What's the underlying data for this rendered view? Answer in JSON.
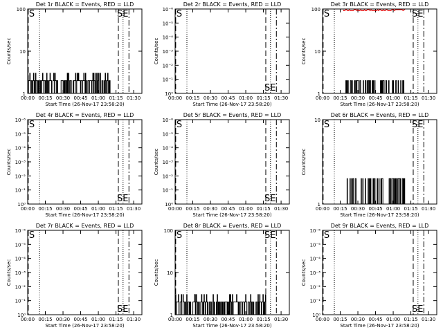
{
  "figure": {
    "xlabel": "Start Time (26-Nov-17 23:58:20)",
    "ylabel": "Counts/sec",
    "xticks": [
      "00:00",
      "00:15",
      "00:30",
      "00:45",
      "01:00",
      "01:15",
      "01:30"
    ]
  },
  "chart_data": [
    {
      "type": "line",
      "title": "Det 1r BLACK = Events, RED = LLD",
      "yscale": "log",
      "ylim": [
        1,
        100
      ],
      "yticks": [
        "1",
        "10",
        "100"
      ],
      "markers": {
        "S": 0.5,
        "SE": 77
      },
      "dashed_lines_min": [
        0.5,
        77,
        86
      ],
      "dotted_lines_min": [
        10,
        81
      ],
      "events": {
        "x_range_min": [
          0,
          70
        ],
        "levels": [
          1,
          2,
          3
        ],
        "pattern": "dense_low"
      },
      "lld": null
    },
    {
      "type": "line",
      "title": "Det 2r BLACK = Events, RED = LLD",
      "yscale": "log",
      "ylim": [
        1,
        1e-06
      ],
      "yticks": [
        "10⁰",
        "10⁻¹",
        "10⁻²",
        "10⁻³",
        "10⁻⁴",
        "10⁻⁵",
        "10⁻⁶"
      ],
      "markers": {
        "S": 0.5,
        "SE": 77
      },
      "dashed_lines_min": [
        0.5,
        77,
        86
      ],
      "dotted_lines_min": [
        10,
        81
      ],
      "events": null,
      "lld": null
    },
    {
      "type": "line",
      "title": "Det 3r BLACK = Events, RED = LLD",
      "yscale": "log",
      "ylim": [
        1,
        100
      ],
      "yticks": [
        "1",
        "10",
        "100"
      ],
      "markers": {
        "S": 0.5,
        "SE": 77
      },
      "dashed_lines_min": [
        0.5,
        77,
        86
      ],
      "dotted_lines_min": [
        10,
        81
      ],
      "events": {
        "x_range_min": [
          18,
          70
        ],
        "levels": [
          1,
          2
        ],
        "pattern": "sparse_low"
      },
      "lld": {
        "x_range_min": [
          18,
          70
        ],
        "level": 100
      }
    },
    {
      "type": "line",
      "title": "Det 4r BLACK = Events, RED = LLD",
      "yscale": "log",
      "ylim": [
        1,
        1e-06
      ],
      "yticks": [
        "10⁰",
        "10⁻¹",
        "10⁻²",
        "10⁻³",
        "10⁻⁴",
        "10⁻⁵",
        "10⁻⁶"
      ],
      "markers": {
        "S": 0.5,
        "SE": 77
      },
      "dashed_lines_min": [
        0.5,
        77,
        86
      ],
      "dotted_lines_min": [
        10,
        81
      ],
      "events": null,
      "lld": null
    },
    {
      "type": "line",
      "title": "Det 5r BLACK = Events, RED = LLD",
      "yscale": "log",
      "ylim": [
        1,
        1e-06
      ],
      "yticks": [
        "10⁰",
        "10⁻¹",
        "10⁻²",
        "10⁻³",
        "10⁻⁴",
        "10⁻⁵",
        "10⁻⁶"
      ],
      "markers": {
        "S": 0.5,
        "SE": 77
      },
      "dashed_lines_min": [
        0.5,
        77,
        86
      ],
      "dotted_lines_min": [
        10,
        81
      ],
      "events": null,
      "lld": null
    },
    {
      "type": "line",
      "title": "Det 6r BLACK = Events, RED = LLD",
      "yscale": "log",
      "ylim": [
        1,
        10
      ],
      "yticks": [
        "1",
        "10"
      ],
      "markers": {
        "S": 0.5,
        "SE": 77
      },
      "dashed_lines_min": [
        0.5,
        77,
        86
      ],
      "dotted_lines_min": [
        10,
        81
      ],
      "events": {
        "x_range_min": [
          18,
          70
        ],
        "levels": [
          1,
          2
        ],
        "pattern": "sparse_mid"
      },
      "lld": null
    },
    {
      "type": "line",
      "title": "Det 7r BLACK = Events, RED = LLD",
      "yscale": "log",
      "ylim": [
        1,
        1e-06
      ],
      "yticks": [
        "10⁰",
        "10⁻¹",
        "10⁻²",
        "10⁻³",
        "10⁻⁴",
        "10⁻⁵",
        "10⁻⁶"
      ],
      "markers": {
        "S": 0.5,
        "SE": 77
      },
      "dashed_lines_min": [
        0.5,
        77,
        86
      ],
      "dotted_lines_min": [
        10,
        81
      ],
      "events": null,
      "lld": null
    },
    {
      "type": "line",
      "title": "Det 8r BLACK = Events, RED = LLD",
      "yscale": "log",
      "ylim": [
        1,
        100
      ],
      "yticks": [
        "1",
        "10",
        "100"
      ],
      "markers": {
        "S": 0.5,
        "SE": 77
      },
      "dashed_lines_min": [
        0.5,
        77,
        86
      ],
      "dotted_lines_min": [
        10,
        81
      ],
      "events": {
        "x_range_min": [
          0,
          77
        ],
        "levels": [
          1,
          2,
          3
        ],
        "pattern": "dense_low"
      },
      "lld": null
    },
    {
      "type": "line",
      "title": "Det 9r BLACK = Events, RED = LLD",
      "yscale": "log",
      "ylim": [
        1,
        1e-06
      ],
      "yticks": [
        "10⁰",
        "10⁻¹",
        "10⁻²",
        "10⁻³",
        "10⁻⁴",
        "10⁻⁵",
        "10⁻⁶"
      ],
      "markers": {
        "S": 0.5,
        "SE": 77
      },
      "dashed_lines_min": [
        0.5,
        77,
        86
      ],
      "dotted_lines_min": [
        10,
        81
      ],
      "events": null,
      "lld": null
    }
  ],
  "colors": {
    "events": "#000000",
    "lld": "#e00000",
    "background": "#ffffff"
  }
}
